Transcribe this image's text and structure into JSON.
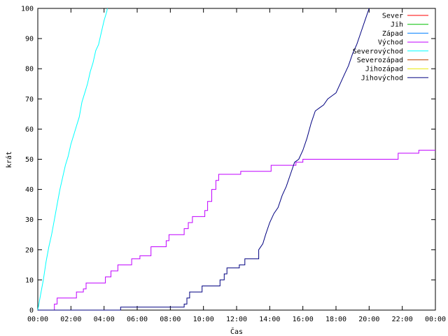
{
  "chart_data": {
    "type": "line",
    "title": "",
    "xlabel": "Čas",
    "ylabel": "krát",
    "xlim": [
      "00:00",
      "24:00"
    ],
    "ylim": [
      0,
      100
    ],
    "grid": false,
    "legend_position": "top-right",
    "x_ticks": [
      "00:00",
      "02:00",
      "04:00",
      "06:00",
      "08:00",
      "10:00",
      "12:00",
      "14:00",
      "16:00",
      "18:00",
      "20:00",
      "22:00",
      "00:00"
    ],
    "y_ticks": [
      "0",
      "10",
      "20",
      "30",
      "40",
      "50",
      "60",
      "70",
      "80",
      "90",
      "100"
    ],
    "series": [
      {
        "name": "Sever",
        "color": "#ff0000",
        "points": []
      },
      {
        "name": "Jih",
        "color": "#00c000",
        "points": []
      },
      {
        "name": "Západ",
        "color": "#0080ff",
        "points": []
      },
      {
        "name": "Východ",
        "color": "#c000ff",
        "points": [
          [
            "00:00",
            0
          ],
          [
            "01:00",
            0
          ],
          [
            "01:00",
            2
          ],
          [
            "01:10",
            2
          ],
          [
            "01:10",
            4
          ],
          [
            "02:20",
            4
          ],
          [
            "02:20",
            6
          ],
          [
            "02:45",
            6
          ],
          [
            "02:45",
            7
          ],
          [
            "02:55",
            7
          ],
          [
            "02:55",
            9
          ],
          [
            "04:05",
            9
          ],
          [
            "04:05",
            11
          ],
          [
            "04:25",
            11
          ],
          [
            "04:25",
            13
          ],
          [
            "04:50",
            13
          ],
          [
            "04:50",
            15
          ],
          [
            "05:40",
            15
          ],
          [
            "05:40",
            17
          ],
          [
            "06:10",
            17
          ],
          [
            "06:10",
            18
          ],
          [
            "06:50",
            18
          ],
          [
            "06:50",
            21
          ],
          [
            "07:45",
            21
          ],
          [
            "07:45",
            23
          ],
          [
            "07:55",
            23
          ],
          [
            "07:55",
            25
          ],
          [
            "08:50",
            25
          ],
          [
            "08:50",
            27
          ],
          [
            "09:05",
            27
          ],
          [
            "09:05",
            29
          ],
          [
            "09:20",
            29
          ],
          [
            "09:20",
            31
          ],
          [
            "10:05",
            31
          ],
          [
            "10:05",
            33
          ],
          [
            "10:15",
            33
          ],
          [
            "10:15",
            36
          ],
          [
            "10:30",
            36
          ],
          [
            "10:30",
            40
          ],
          [
            "10:45",
            40
          ],
          [
            "10:45",
            43
          ],
          [
            "10:55",
            43
          ],
          [
            "10:55",
            45
          ],
          [
            "12:15",
            45
          ],
          [
            "12:15",
            46
          ],
          [
            "14:05",
            46
          ],
          [
            "14:05",
            48
          ],
          [
            "15:35",
            48
          ],
          [
            "15:35",
            49
          ],
          [
            "16:00",
            49
          ],
          [
            "16:00",
            50
          ],
          [
            "21:45",
            50
          ],
          [
            "21:45",
            52
          ],
          [
            "23:00",
            52
          ],
          [
            "23:00",
            53
          ],
          [
            "24:00",
            53
          ]
        ]
      },
      {
        "name": "Severovýchod",
        "color": "#00ffff",
        "points": [
          [
            "00:00",
            0
          ],
          [
            "00:10",
            5
          ],
          [
            "00:20",
            10
          ],
          [
            "00:30",
            16
          ],
          [
            "00:40",
            21
          ],
          [
            "00:50",
            25
          ],
          [
            "01:00",
            30
          ],
          [
            "01:10",
            35
          ],
          [
            "01:20",
            40
          ],
          [
            "01:30",
            44
          ],
          [
            "01:40",
            48
          ],
          [
            "01:50",
            51
          ],
          [
            "02:00",
            55
          ],
          [
            "02:10",
            58
          ],
          [
            "02:20",
            61
          ],
          [
            "02:30",
            64
          ],
          [
            "02:40",
            69
          ],
          [
            "02:50",
            72
          ],
          [
            "03:00",
            75
          ],
          [
            "03:10",
            79
          ],
          [
            "03:20",
            82
          ],
          [
            "03:30",
            86
          ],
          [
            "03:40",
            88
          ],
          [
            "03:50",
            92
          ],
          [
            "04:00",
            96
          ],
          [
            "04:10",
            99
          ],
          [
            "04:12",
            100
          ]
        ]
      },
      {
        "name": "Severozápad",
        "color": "#c04000",
        "points": []
      },
      {
        "name": "Jihozápad",
        "color": "#e8e800",
        "points": []
      },
      {
        "name": "Jihovýchod",
        "color": "#000080",
        "points": [
          [
            "00:00",
            0
          ],
          [
            "05:00",
            0
          ],
          [
            "05:00",
            1
          ],
          [
            "08:50",
            1
          ],
          [
            "08:50",
            2
          ],
          [
            "09:00",
            2
          ],
          [
            "09:00",
            4
          ],
          [
            "09:10",
            4
          ],
          [
            "09:10",
            6
          ],
          [
            "09:55",
            6
          ],
          [
            "09:55",
            8
          ],
          [
            "11:00",
            8
          ],
          [
            "11:00",
            10
          ],
          [
            "11:15",
            10
          ],
          [
            "11:15",
            12
          ],
          [
            "11:25",
            12
          ],
          [
            "11:25",
            14
          ],
          [
            "12:10",
            14
          ],
          [
            "12:10",
            15
          ],
          [
            "12:30",
            15
          ],
          [
            "12:30",
            17
          ],
          [
            "13:20",
            17
          ],
          [
            "13:20",
            20
          ],
          [
            "13:35",
            22
          ],
          [
            "13:45",
            25
          ],
          [
            "14:00",
            29
          ],
          [
            "14:15",
            32
          ],
          [
            "14:30",
            34
          ],
          [
            "14:45",
            38
          ],
          [
            "15:00",
            41
          ],
          [
            "15:15",
            45
          ],
          [
            "15:30",
            49
          ],
          [
            "15:45",
            50
          ],
          [
            "16:00",
            53
          ],
          [
            "16:15",
            57
          ],
          [
            "16:30",
            62
          ],
          [
            "16:45",
            66
          ],
          [
            "17:00",
            67
          ],
          [
            "17:15",
            68
          ],
          [
            "17:30",
            70
          ],
          [
            "17:45",
            71
          ],
          [
            "18:00",
            72
          ],
          [
            "18:15",
            75
          ],
          [
            "18:30",
            78
          ],
          [
            "18:45",
            81
          ],
          [
            "19:00",
            85
          ],
          [
            "19:15",
            88
          ],
          [
            "19:30",
            92
          ],
          [
            "19:45",
            96
          ],
          [
            "20:00",
            100
          ]
        ]
      }
    ]
  }
}
